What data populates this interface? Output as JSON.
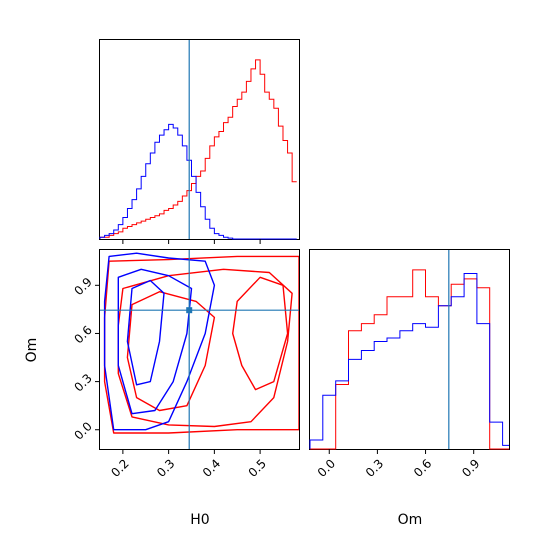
{
  "colors": {
    "series_a": "#ff0000",
    "series_b": "#0000ff",
    "truth": "#1f77b4",
    "frame": "#000000"
  },
  "chart_data": [
    {
      "panel": "hist-H0",
      "type": "histogram",
      "xlim": [
        0.15,
        0.585
      ],
      "grid": false,
      "bins": [
        0.15,
        0.16,
        0.17,
        0.18,
        0.19,
        0.2,
        0.21,
        0.22,
        0.23,
        0.24,
        0.25,
        0.26,
        0.27,
        0.28,
        0.29,
        0.3,
        0.31,
        0.32,
        0.33,
        0.34,
        0.35,
        0.36,
        0.37,
        0.38,
        0.39,
        0.4,
        0.41,
        0.42,
        0.43,
        0.44,
        0.45,
        0.46,
        0.47,
        0.48,
        0.49,
        0.5,
        0.51,
        0.52,
        0.53,
        0.54,
        0.55,
        0.56,
        0.57,
        0.58
      ],
      "series": [
        {
          "color": "red",
          "counts": [
            0.01,
            0.01,
            0.02,
            0.03,
            0.04,
            0.06,
            0.07,
            0.08,
            0.09,
            0.1,
            0.11,
            0.12,
            0.13,
            0.14,
            0.16,
            0.17,
            0.19,
            0.21,
            0.24,
            0.27,
            0.31,
            0.35,
            0.38,
            0.45,
            0.52,
            0.57,
            0.6,
            0.65,
            0.68,
            0.74,
            0.78,
            0.82,
            0.88,
            0.95,
            1.0,
            0.92,
            0.82,
            0.78,
            0.73,
            0.63,
            0.55,
            0.48,
            0.32
          ]
        },
        {
          "color": "blue",
          "counts": [
            0.01,
            0.02,
            0.03,
            0.05,
            0.08,
            0.12,
            0.17,
            0.22,
            0.28,
            0.35,
            0.42,
            0.48,
            0.54,
            0.58,
            0.61,
            0.64,
            0.62,
            0.58,
            0.52,
            0.44,
            0.35,
            0.26,
            0.18,
            0.11,
            0.06,
            0.03,
            0.02,
            0.01,
            0.005,
            0,
            0,
            0,
            0,
            0,
            0,
            0,
            0,
            0,
            0,
            0,
            0,
            0,
            0
          ]
        }
      ],
      "truth_x": 0.345
    },
    {
      "panel": "contour-H0-Om",
      "type": "contour",
      "xlim": [
        0.15,
        0.585
      ],
      "ylim": [
        -0.12,
        1.12
      ],
      "x_ticks": [
        "0.2",
        "0.3",
        "0.4",
        "0.5"
      ],
      "x_tick_values": [
        0.2,
        0.3,
        0.4,
        0.5
      ],
      "y_ticks": [
        "0.0",
        "0.3",
        "0.6",
        "0.9"
      ],
      "y_tick_values": [
        0.0,
        0.3,
        0.6,
        0.9
      ],
      "xlabel": "H0",
      "ylabel": "Om",
      "series": [
        {
          "color": "red",
          "levels": [
            [
              [
                0.17,
                1.05
              ],
              [
                0.3,
                1.06
              ],
              [
                0.45,
                1.08
              ],
              [
                0.585,
                1.08
              ],
              [
                0.585,
                0.0
              ],
              [
                0.45,
                0.0
              ],
              [
                0.3,
                -0.02
              ],
              [
                0.18,
                -0.02
              ],
              [
                0.16,
                0.3
              ],
              [
                0.16,
                0.7
              ],
              [
                0.17,
                1.05
              ]
            ],
            [
              [
                0.2,
                0.88
              ],
              [
                0.3,
                0.96
              ],
              [
                0.42,
                1.0
              ],
              [
                0.52,
                0.98
              ],
              [
                0.57,
                0.85
              ],
              [
                0.56,
                0.55
              ],
              [
                0.53,
                0.2
              ],
              [
                0.48,
                0.05
              ],
              [
                0.4,
                0.02
              ],
              [
                0.3,
                0.03
              ],
              [
                0.22,
                0.08
              ],
              [
                0.19,
                0.35
              ],
              [
                0.19,
                0.65
              ],
              [
                0.2,
                0.88
              ]
            ],
            [
              [
                0.22,
                0.78
              ],
              [
                0.28,
                0.86
              ],
              [
                0.36,
                0.8
              ],
              [
                0.4,
                0.7
              ],
              [
                0.38,
                0.4
              ],
              [
                0.34,
                0.15
              ],
              [
                0.28,
                0.12
              ],
              [
                0.23,
                0.2
              ],
              [
                0.21,
                0.45
              ],
              [
                0.22,
                0.78
              ]
            ],
            [
              [
                0.45,
                0.8
              ],
              [
                0.5,
                0.95
              ],
              [
                0.55,
                0.9
              ],
              [
                0.56,
                0.6
              ],
              [
                0.53,
                0.3
              ],
              [
                0.49,
                0.25
              ],
              [
                0.46,
                0.4
              ],
              [
                0.44,
                0.6
              ],
              [
                0.45,
                0.8
              ]
            ]
          ]
        },
        {
          "color": "blue",
          "levels": [
            [
              [
                0.17,
                1.08
              ],
              [
                0.23,
                1.1
              ],
              [
                0.3,
                1.07
              ],
              [
                0.38,
                1.05
              ],
              [
                0.4,
                0.9
              ],
              [
                0.38,
                0.6
              ],
              [
                0.34,
                0.3
              ],
              [
                0.3,
                0.05
              ],
              [
                0.25,
                0.0
              ],
              [
                0.18,
                0.0
              ],
              [
                0.16,
                0.4
              ],
              [
                0.16,
                0.8
              ],
              [
                0.17,
                1.08
              ]
            ],
            [
              [
                0.19,
                0.95
              ],
              [
                0.24,
                1.0
              ],
              [
                0.3,
                0.96
              ],
              [
                0.35,
                0.88
              ],
              [
                0.34,
                0.6
              ],
              [
                0.31,
                0.3
              ],
              [
                0.27,
                0.12
              ],
              [
                0.22,
                0.1
              ],
              [
                0.19,
                0.4
              ],
              [
                0.19,
                0.95
              ]
            ],
            [
              [
                0.22,
                0.88
              ],
              [
                0.26,
                0.93
              ],
              [
                0.29,
                0.85
              ],
              [
                0.28,
                0.55
              ],
              [
                0.26,
                0.3
              ],
              [
                0.23,
                0.28
              ],
              [
                0.21,
                0.55
              ],
              [
                0.22,
                0.88
              ]
            ]
          ]
        }
      ],
      "truth_x": 0.345,
      "truth_y": 0.745
    },
    {
      "panel": "hist-Om",
      "type": "histogram",
      "xlim": [
        -0.12,
        1.12
      ],
      "x_ticks": [
        "0.0",
        "0.3",
        "0.6",
        "0.9"
      ],
      "x_tick_values": [
        0.0,
        0.3,
        0.6,
        0.9
      ],
      "xlabel": "Om",
      "bins": [
        -0.12,
        -0.04,
        0.04,
        0.12,
        0.2,
        0.28,
        0.36,
        0.44,
        0.52,
        0.6,
        0.68,
        0.76,
        0.84,
        0.92,
        1.0,
        1.08,
        1.12
      ],
      "series": [
        {
          "color": "red",
          "counts": [
            0,
            0,
            0.36,
            0.66,
            0.7,
            0.75,
            0.85,
            0.85,
            1.0,
            0.85,
            0.8,
            0.92,
            0.95,
            0.9,
            0,
            0
          ]
        },
        {
          "color": "blue",
          "counts": [
            0.05,
            0.3,
            0.38,
            0.5,
            0.55,
            0.6,
            0.62,
            0.66,
            0.7,
            0.68,
            0.8,
            0.85,
            0.98,
            0.7,
            0.15,
            0.02
          ]
        }
      ],
      "truth_x": 0.745
    }
  ]
}
